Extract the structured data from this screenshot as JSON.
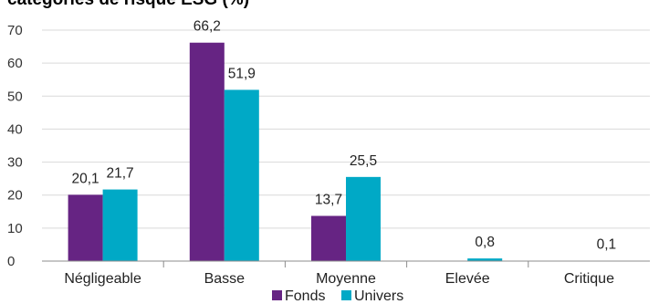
{
  "chart_data": {
    "type": "bar",
    "title": "catégories de risque ESG (%)",
    "categories": [
      "Négligeable",
      "Basse",
      "Moyenne",
      "Elevée",
      "Critique"
    ],
    "series": [
      {
        "name": "Fonds",
        "values": [
          20.1,
          66.2,
          13.7,
          0,
          0
        ],
        "labels": [
          "20,1",
          "66,2",
          "13,7",
          "",
          ""
        ]
      },
      {
        "name": "Univers",
        "values": [
          21.7,
          51.9,
          25.5,
          0.8,
          0.1
        ],
        "labels": [
          "21,7",
          "51,9",
          "25,5",
          "0,8",
          "0,1"
        ]
      }
    ],
    "yticks": [
      0,
      10,
      20,
      30,
      40,
      50,
      60,
      70
    ],
    "ylim": [
      0,
      70
    ],
    "grid": true,
    "legend": "bottom",
    "colors": {
      "Fonds": "#662483",
      "Univers": "#00A9C6",
      "title": "#662483",
      "grid": "#D9D9D9"
    }
  }
}
